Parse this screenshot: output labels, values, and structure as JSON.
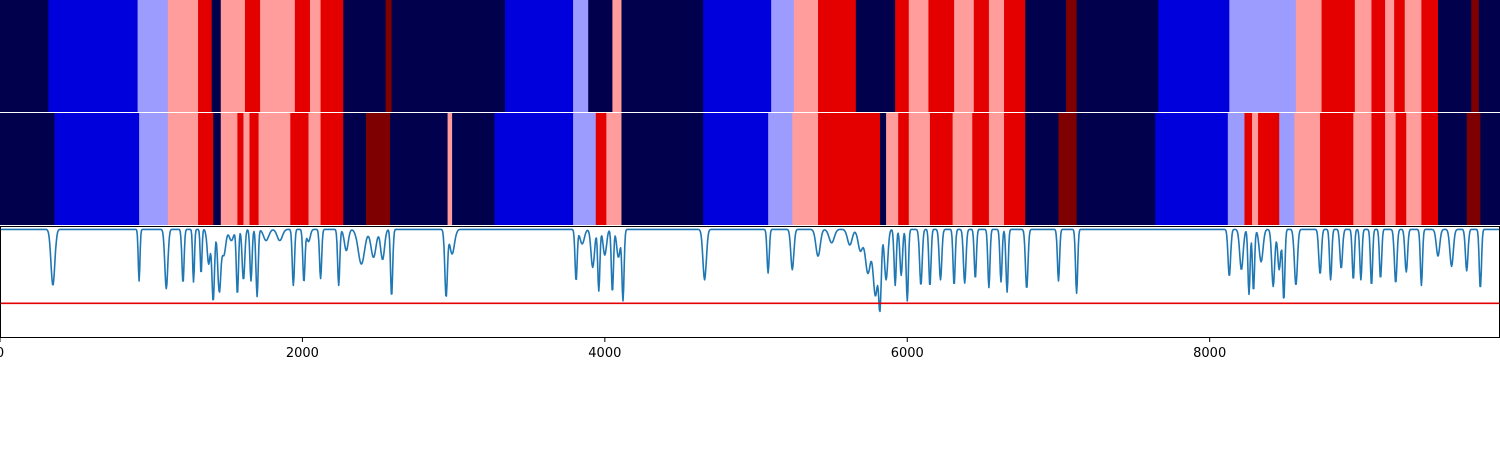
{
  "chart_data": {
    "type": "heatmap",
    "x_range": [
      0,
      9920
    ],
    "x_ticks": [
      {
        "value": 0,
        "label": "0"
      },
      {
        "value": 2000,
        "label": "2000"
      },
      {
        "value": 4000,
        "label": "4000"
      },
      {
        "value": 6000,
        "label": "6000"
      },
      {
        "value": 8000,
        "label": "8000"
      }
    ],
    "colors": {
      "navy": "#00004c",
      "blue": "#0000dd",
      "lightblue": "#9c9cff",
      "pink": "#ff9c9c",
      "red": "#e50000",
      "darkred": "#7f0000",
      "line": "#1f77b4",
      "threshold": "#e50000",
      "axis": "#000000"
    },
    "rows": [
      {
        "segments": [
          [
            0,
            320,
            "navy"
          ],
          [
            320,
            910,
            "blue"
          ],
          [
            910,
            1110,
            "lightblue"
          ],
          [
            1110,
            1310,
            "pink"
          ],
          [
            1310,
            1400,
            "red"
          ],
          [
            1400,
            1460,
            "navy"
          ],
          [
            1460,
            1620,
            "pink"
          ],
          [
            1620,
            1720,
            "red"
          ],
          [
            1720,
            1950,
            "pink"
          ],
          [
            1950,
            2050,
            "red"
          ],
          [
            2050,
            2120,
            "pink"
          ],
          [
            2120,
            2270,
            "red"
          ],
          [
            2270,
            2550,
            "navy"
          ],
          [
            2550,
            2590,
            "darkred"
          ],
          [
            2590,
            3340,
            "navy"
          ],
          [
            3340,
            3790,
            "blue"
          ],
          [
            3790,
            3890,
            "lightblue"
          ],
          [
            3890,
            4050,
            "navy"
          ],
          [
            4050,
            4110,
            "pink"
          ],
          [
            4110,
            4650,
            "navy"
          ],
          [
            4650,
            5100,
            "blue"
          ],
          [
            5100,
            5250,
            "lightblue"
          ],
          [
            5250,
            5410,
            "pink"
          ],
          [
            5410,
            5660,
            "red"
          ],
          [
            5660,
            5920,
            "navy"
          ],
          [
            5920,
            6010,
            "red"
          ],
          [
            6010,
            6140,
            "pink"
          ],
          [
            6140,
            6310,
            "red"
          ],
          [
            6310,
            6440,
            "pink"
          ],
          [
            6440,
            6540,
            "red"
          ],
          [
            6540,
            6640,
            "pink"
          ],
          [
            6640,
            6780,
            "red"
          ],
          [
            6780,
            7050,
            "navy"
          ],
          [
            7050,
            7120,
            "darkred"
          ],
          [
            7120,
            7660,
            "navy"
          ],
          [
            7660,
            8130,
            "blue"
          ],
          [
            8130,
            8570,
            "lightblue"
          ],
          [
            8570,
            8740,
            "pink"
          ],
          [
            8740,
            8960,
            "red"
          ],
          [
            8960,
            9070,
            "pink"
          ],
          [
            9070,
            9160,
            "red"
          ],
          [
            9160,
            9220,
            "pink"
          ],
          [
            9220,
            9290,
            "red"
          ],
          [
            9290,
            9400,
            "pink"
          ],
          [
            9400,
            9510,
            "red"
          ],
          [
            9510,
            9730,
            "navy"
          ],
          [
            9730,
            9780,
            "darkred"
          ],
          [
            9780,
            9920,
            "navy"
          ]
        ]
      },
      {
        "segments": [
          [
            0,
            360,
            "navy"
          ],
          [
            360,
            920,
            "blue"
          ],
          [
            920,
            1110,
            "lightblue"
          ],
          [
            1110,
            1310,
            "pink"
          ],
          [
            1310,
            1410,
            "red"
          ],
          [
            1410,
            1460,
            "navy"
          ],
          [
            1460,
            1570,
            "pink"
          ],
          [
            1570,
            1610,
            "red"
          ],
          [
            1610,
            1650,
            "pink"
          ],
          [
            1650,
            1710,
            "red"
          ],
          [
            1710,
            1920,
            "pink"
          ],
          [
            1920,
            2040,
            "red"
          ],
          [
            2040,
            2120,
            "pink"
          ],
          [
            2120,
            2270,
            "red"
          ],
          [
            2270,
            2420,
            "navy"
          ],
          [
            2420,
            2580,
            "darkred"
          ],
          [
            2580,
            2960,
            "navy"
          ],
          [
            2960,
            2990,
            "pink"
          ],
          [
            2990,
            3270,
            "navy"
          ],
          [
            3270,
            3790,
            "blue"
          ],
          [
            3790,
            3940,
            "lightblue"
          ],
          [
            3940,
            4010,
            "red"
          ],
          [
            4010,
            4110,
            "pink"
          ],
          [
            4110,
            4650,
            "navy"
          ],
          [
            4650,
            5080,
            "blue"
          ],
          [
            5080,
            5240,
            "lightblue"
          ],
          [
            5240,
            5410,
            "pink"
          ],
          [
            5410,
            5820,
            "red"
          ],
          [
            5820,
            5860,
            "navy"
          ],
          [
            5860,
            5940,
            "pink"
          ],
          [
            5940,
            6010,
            "red"
          ],
          [
            6010,
            6150,
            "pink"
          ],
          [
            6150,
            6300,
            "red"
          ],
          [
            6300,
            6430,
            "pink"
          ],
          [
            6430,
            6540,
            "red"
          ],
          [
            6540,
            6640,
            "pink"
          ],
          [
            6640,
            6780,
            "red"
          ],
          [
            6780,
            7000,
            "navy"
          ],
          [
            7000,
            7120,
            "darkred"
          ],
          [
            7120,
            7640,
            "navy"
          ],
          [
            7640,
            8120,
            "blue"
          ],
          [
            8120,
            8230,
            "lightblue"
          ],
          [
            8230,
            8280,
            "red"
          ],
          [
            8280,
            8320,
            "pink"
          ],
          [
            8320,
            8460,
            "red"
          ],
          [
            8460,
            8560,
            "lightblue"
          ],
          [
            8560,
            8730,
            "pink"
          ],
          [
            8730,
            8950,
            "red"
          ],
          [
            8950,
            9070,
            "pink"
          ],
          [
            9070,
            9160,
            "red"
          ],
          [
            9160,
            9230,
            "pink"
          ],
          [
            9230,
            9300,
            "red"
          ],
          [
            9300,
            9400,
            "pink"
          ],
          [
            9400,
            9510,
            "red"
          ],
          [
            9510,
            9700,
            "navy"
          ],
          [
            9700,
            9790,
            "darkred"
          ],
          [
            9790,
            9920,
            "navy"
          ]
        ]
      }
    ],
    "trace": {
      "y_range": [
        0,
        1
      ],
      "baseline": 0.97,
      "threshold": 0.31,
      "dips": [
        [
          350,
          0.47,
          18
        ],
        [
          920,
          0.51,
          8
        ],
        [
          1100,
          0.44,
          14
        ],
        [
          1210,
          0.49,
          10
        ],
        [
          1280,
          0.5,
          8
        ],
        [
          1330,
          0.57,
          8
        ],
        [
          1380,
          0.66,
          14
        ],
        [
          1410,
          0.33,
          12
        ],
        [
          1450,
          0.42,
          14
        ],
        [
          1480,
          0.74,
          18
        ],
        [
          1530,
          0.87,
          20
        ],
        [
          1570,
          0.39,
          10
        ],
        [
          1610,
          0.52,
          12
        ],
        [
          1660,
          0.51,
          10
        ],
        [
          1700,
          0.37,
          10
        ],
        [
          1760,
          0.87,
          24
        ],
        [
          1850,
          0.87,
          24
        ],
        [
          1940,
          0.47,
          10
        ],
        [
          2010,
          0.5,
          10
        ],
        [
          2040,
          0.86,
          16
        ],
        [
          2120,
          0.53,
          10
        ],
        [
          2240,
          0.47,
          10
        ],
        [
          2290,
          0.78,
          18
        ],
        [
          2390,
          0.66,
          30
        ],
        [
          2470,
          0.72,
          24
        ],
        [
          2530,
          0.7,
          18
        ],
        [
          2590,
          0.37,
          10
        ],
        [
          2950,
          0.37,
          12
        ],
        [
          2990,
          0.75,
          22
        ],
        [
          3810,
          0.51,
          10
        ],
        [
          3850,
          0.84,
          20
        ],
        [
          3920,
          0.63,
          16
        ],
        [
          3960,
          0.42,
          10
        ],
        [
          4000,
          0.74,
          16
        ],
        [
          4050,
          0.41,
          10
        ],
        [
          4090,
          0.72,
          16
        ],
        [
          4120,
          0.34,
          10
        ],
        [
          4660,
          0.52,
          16
        ],
        [
          5080,
          0.58,
          10
        ],
        [
          5240,
          0.61,
          14
        ],
        [
          5410,
          0.73,
          20
        ],
        [
          5500,
          0.85,
          24
        ],
        [
          5620,
          0.83,
          22
        ],
        [
          5690,
          0.78,
          22
        ],
        [
          5740,
          0.58,
          24
        ],
        [
          5790,
          0.38,
          22
        ],
        [
          5820,
          0.33,
          12
        ],
        [
          5860,
          0.52,
          16
        ],
        [
          5920,
          0.47,
          10
        ],
        [
          5960,
          0.56,
          12
        ],
        [
          6000,
          0.33,
          10
        ],
        [
          6090,
          0.47,
          12
        ],
        [
          6150,
          0.46,
          10
        ],
        [
          6220,
          0.52,
          12
        ],
        [
          6310,
          0.47,
          10
        ],
        [
          6380,
          0.49,
          12
        ],
        [
          6450,
          0.53,
          10
        ],
        [
          6540,
          0.45,
          10
        ],
        [
          6620,
          0.5,
          10
        ],
        [
          6660,
          0.41,
          10
        ],
        [
          6790,
          0.44,
          12
        ],
        [
          7000,
          0.51,
          10
        ],
        [
          7120,
          0.4,
          10
        ],
        [
          8130,
          0.55,
          12
        ],
        [
          8210,
          0.61,
          16
        ],
        [
          8260,
          0.39,
          10
        ],
        [
          8290,
          0.42,
          10
        ],
        [
          8340,
          0.68,
          18
        ],
        [
          8420,
          0.46,
          14
        ],
        [
          8460,
          0.61,
          14
        ],
        [
          8490,
          0.34,
          10
        ],
        [
          8570,
          0.47,
          14
        ],
        [
          8730,
          0.57,
          12
        ],
        [
          8800,
          0.52,
          10
        ],
        [
          8870,
          0.62,
          12
        ],
        [
          8950,
          0.52,
          10
        ],
        [
          9000,
          0.52,
          10
        ],
        [
          9070,
          0.47,
          10
        ],
        [
          9130,
          0.53,
          10
        ],
        [
          9230,
          0.49,
          12
        ],
        [
          9300,
          0.59,
          12
        ],
        [
          9400,
          0.47,
          10
        ],
        [
          9510,
          0.73,
          16
        ],
        [
          9600,
          0.64,
          16
        ],
        [
          9700,
          0.6,
          12
        ],
        [
          9790,
          0.44,
          10
        ]
      ]
    }
  }
}
